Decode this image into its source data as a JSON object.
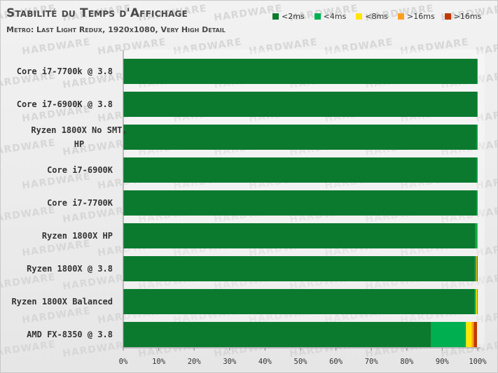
{
  "watermark": "HARDWARE",
  "chart_data": {
    "type": "bar",
    "orientation": "horizontal",
    "stacked": true,
    "title": "Stabilité du Temps d'Affichage",
    "subtitle": "Metro: Last Light Redux, 1920x1080, Very High Detail",
    "categories": [
      "Core i7-7700k @ 3.8",
      "Core i7-6900K @ 3.8",
      "Ryzen 1800X No SMT, HP",
      "Core i7-6900K",
      "Core i7-7700K",
      "Ryzen 1800X HP",
      "Ryzen 1800X @ 3.8",
      "Ryzen 1800X Balanced",
      "AMD FX-8350 @ 3.8"
    ],
    "series": [
      {
        "name": "<2ms",
        "color": "#0b7a2f",
        "values": [
          99.8,
          99.8,
          99.7,
          99.7,
          99.7,
          99.3,
          99.2,
          99.1,
          86.9
        ]
      },
      {
        "name": "<4ms",
        "color": "#00b050",
        "values": [
          0.2,
          0.2,
          0.3,
          0.3,
          0.3,
          0.5,
          0.4,
          0.4,
          9.8
        ]
      },
      {
        "name": "<8ms",
        "color": "#ffe600",
        "values": [
          0.0,
          0.0,
          0.0,
          0.0,
          0.0,
          0.1,
          0.1,
          0.3,
          1.6
        ]
      },
      {
        "name": ">16ms",
        "color": "#ffa020",
        "values": [
          0.0,
          0.0,
          0.0,
          0.0,
          0.0,
          0.0,
          0.1,
          0.1,
          0.6
        ]
      },
      {
        "name": ">16ms",
        "color": "#c03a00",
        "values": [
          0.0,
          0.0,
          0.0,
          0.0,
          0.0,
          0.1,
          0.2,
          0.1,
          0.9
        ]
      }
    ],
    "xlim": [
      0,
      100
    ],
    "xticks": [
      "0%",
      "10%",
      "20%",
      "30%",
      "40%",
      "50%",
      "60%",
      "70%",
      "80%",
      "90%",
      "100%"
    ],
    "legend_position": "top-right",
    "grid": false
  }
}
